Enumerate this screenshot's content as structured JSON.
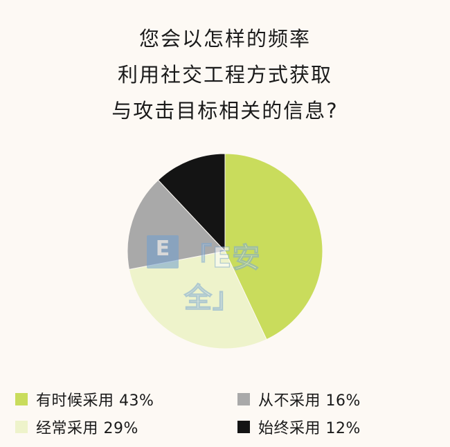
{
  "title": {
    "lines": [
      "您会以怎样的频率",
      "利用社交工程方式获取",
      "与攻击目标相关的信息?"
    ]
  },
  "watermark": {
    "logo_letter": "E",
    "text": "「E安全」"
  },
  "chart_data": {
    "type": "pie",
    "title": "您会以怎样的频率利用社交工程方式获取与攻击目标相关的信息?",
    "start_angle_deg": 0,
    "direction": "clockwise",
    "slices": [
      {
        "label": "有时候采用",
        "value": 43,
        "percent_label": "43%",
        "color": "#c9dc5c"
      },
      {
        "label": "经常采用",
        "value": 29,
        "percent_label": "29%",
        "color": "#eef3cb"
      },
      {
        "label": "从不采用",
        "value": 16,
        "percent_label": "16%",
        "color": "#a9a9a9"
      },
      {
        "label": "始终采用",
        "value": 12,
        "percent_label": "12%",
        "color": "#141414"
      }
    ],
    "legend": {
      "placement": "bottom",
      "items": [
        {
          "text": "有时候采用 43%",
          "color": "#c9dc5c"
        },
        {
          "text": "经常采用 29%",
          "color": "#eef3cb"
        },
        {
          "text": "从不采用 16%",
          "color": "#a9a9a9"
        },
        {
          "text": "始终采用 12%",
          "color": "#141414"
        }
      ]
    }
  }
}
